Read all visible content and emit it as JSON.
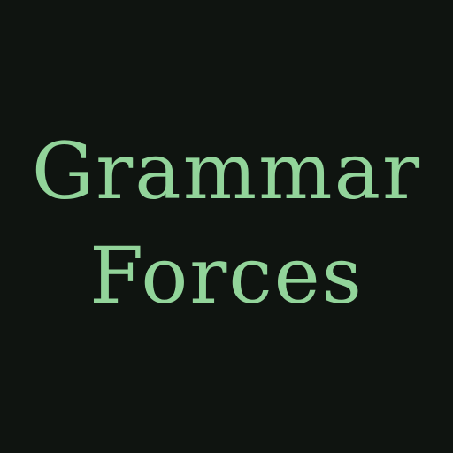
{
  "title": {
    "line1": "Grammar",
    "line2": "Forces"
  },
  "colors": {
    "background": "#0f1410",
    "text": "#92d49a"
  }
}
